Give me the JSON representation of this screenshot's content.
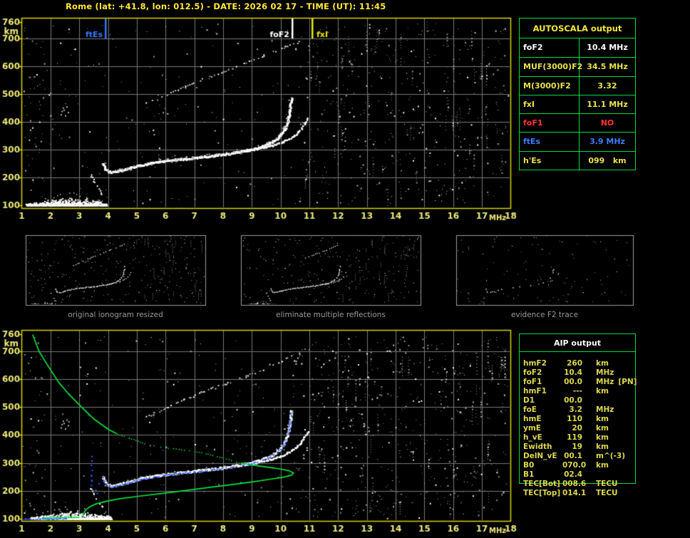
{
  "header": {
    "title": "Rome (lat: +41.8, lon: 012.5) - DATE: 2026 02 17 - TIME (UT): 11:45"
  },
  "colors": {
    "background": "#000000",
    "title_text": "#ffe93a",
    "plot_border": "#d8d400",
    "grid_line": "#7a7a7a",
    "axis_text": "#ece97a",
    "table_border": "#00d944",
    "table_yellow": "#e8e24e",
    "table_white": "#ffffff",
    "table_red": "#ff3232",
    "table_blue": "#3f7cff",
    "echo_white": "#ffffff",
    "noise_gray": "#9a9a9a",
    "profile_green": "#00e23c",
    "restored_blue": "#2b5cff",
    "caption_gray": "#9a9a9a",
    "thumb_border": "#9e9e9e"
  },
  "autoscala_table": {
    "title": "AUTOSCALA output",
    "rows": [
      {
        "label": "foF2",
        "value": "10.4 MHz",
        "color": "#ffffff"
      },
      {
        "label": "MUF(3000)F2",
        "value": "34.5 MHz",
        "color": "#e8e24e"
      },
      {
        "label": "M(3000)F2",
        "value": "3.32",
        "color": "#e8e24e"
      },
      {
        "label": "fxI",
        "value": "11.1 MHz",
        "color": "#e8e24e"
      },
      {
        "label": "foF1",
        "value": "NO",
        "color": "#ff3232"
      },
      {
        "label": "ftEs",
        "value": "3.9 MHz",
        "color": "#3f7cff"
      },
      {
        "label": "h'Es",
        "value": "099   km",
        "color": "#e8e24e"
      }
    ]
  },
  "aip_table": {
    "title": "AIP output",
    "rows": [
      {
        "label": "hmF2",
        "value": "260",
        "unit": "km",
        "note": ""
      },
      {
        "label": "foF2",
        "value": "10.4",
        "unit": "MHz",
        "note": ""
      },
      {
        "label": "foF1",
        "value": "00.0",
        "unit": "MHz",
        "note": "[PN]"
      },
      {
        "label": "hmF1",
        "value": "---",
        "unit": "km",
        "note": ""
      },
      {
        "label": "D1",
        "value": "00.0",
        "unit": "",
        "note": ""
      },
      {
        "label": "foE",
        "value": "3.2",
        "unit": "MHz",
        "note": ""
      },
      {
        "label": "hmE",
        "value": "110",
        "unit": "km",
        "note": ""
      },
      {
        "label": "ymE",
        "value": "20",
        "unit": "km",
        "note": ""
      },
      {
        "label": "h_vE",
        "value": "119",
        "unit": "km",
        "note": ""
      },
      {
        "label": "Ewidth",
        "value": "19",
        "unit": "km",
        "note": ""
      },
      {
        "label": "DelN_vE",
        "value": "00.1",
        "unit": "m^(-3)",
        "note": ""
      },
      {
        "label": "B0",
        "value": "070.0",
        "unit": "km",
        "note": ""
      },
      {
        "label": "B1",
        "value": "02.4",
        "unit": "",
        "note": ""
      },
      {
        "label": "TEC[Bot]",
        "value": "008.6",
        "unit": "TECU",
        "note": ""
      },
      {
        "label": "TEC[Top]",
        "value": "014.1",
        "unit": "TECU",
        "note": ""
      }
    ]
  },
  "thumbnails": [
    {
      "caption": "original ionogram resized"
    },
    {
      "caption": "eliminate multiple reflections"
    },
    {
      "caption": "evidence F2 trace"
    }
  ],
  "chart_data": {
    "type": "scatter",
    "x_axis": {
      "unit": "MHz",
      "range": [
        1,
        18
      ],
      "ticks": [
        1,
        2,
        3,
        4,
        5,
        6,
        7,
        8,
        9,
        10,
        11,
        12,
        13,
        14,
        15,
        16,
        17,
        18
      ]
    },
    "y_axis": {
      "unit": "km",
      "range": [
        100,
        760
      ],
      "ticks": [
        760,
        700,
        600,
        500,
        400,
        300,
        200,
        100
      ]
    },
    "top_plot_markers": [
      {
        "label": "ftEs",
        "freq": 3.9,
        "color": "#3a78ff",
        "label_side": "left"
      },
      {
        "label": "foF2",
        "freq": 10.4,
        "color": "#ffffff",
        "label_side": "left"
      },
      {
        "label": "fxI",
        "freq": 11.1,
        "color": "#e8e800",
        "label_side": "right"
      }
    ],
    "echo_traces": {
      "es_layer": {
        "f_range": [
          1.15,
          3.95
        ],
        "h_range": [
          100,
          132
        ],
        "peak_f": 2.7
      },
      "ef_streak": [
        [
          3.38,
          212
        ],
        [
          3.5,
          190
        ],
        [
          3.62,
          168
        ],
        [
          3.74,
          148
        ],
        [
          3.82,
          136
        ]
      ],
      "f2_ordinary": [
        [
          3.8,
          254
        ],
        [
          3.86,
          238
        ],
        [
          3.95,
          226
        ],
        [
          4.1,
          221
        ],
        [
          4.3,
          224
        ],
        [
          4.6,
          232
        ],
        [
          5.0,
          244
        ],
        [
          5.5,
          254
        ],
        [
          6.0,
          262
        ],
        [
          6.6,
          269
        ],
        [
          7.2,
          276
        ],
        [
          7.8,
          283
        ],
        [
          8.4,
          292
        ],
        [
          8.9,
          302
        ],
        [
          9.3,
          313
        ],
        [
          9.6,
          326
        ],
        [
          9.85,
          342
        ],
        [
          10.02,
          360
        ],
        [
          10.15,
          382
        ],
        [
          10.24,
          410
        ],
        [
          10.3,
          442
        ],
        [
          10.33,
          468
        ],
        [
          10.35,
          492
        ]
      ],
      "f2_extraordinary": [
        [
          8.7,
          296
        ],
        [
          9.1,
          303
        ],
        [
          9.5,
          312
        ],
        [
          9.9,
          323
        ],
        [
          10.2,
          336
        ],
        [
          10.45,
          352
        ],
        [
          10.65,
          372
        ],
        [
          10.8,
          392
        ],
        [
          10.9,
          408
        ],
        [
          10.95,
          418
        ]
      ],
      "second_hop": [
        [
          5.25,
          465
        ],
        [
          5.7,
          484
        ],
        [
          6.2,
          508
        ],
        [
          6.7,
          531
        ],
        [
          7.2,
          553
        ],
        [
          7.7,
          572
        ],
        [
          8.2,
          590
        ],
        [
          8.7,
          610
        ],
        [
          9.2,
          630
        ],
        [
          9.7,
          652
        ],
        [
          10.1,
          668
        ],
        [
          10.45,
          688
        ]
      ],
      "second_hop_tip": [
        [
          10.5,
          660
        ],
        [
          10.55,
          676
        ],
        [
          10.62,
          692
        ],
        [
          10.68,
          702
        ]
      ],
      "mid_cluster": [
        [
          2.35,
          428
        ],
        [
          2.45,
          444
        ],
        [
          2.55,
          456
        ],
        [
          2.42,
          452
        ],
        [
          2.6,
          436
        ],
        [
          2.5,
          424
        ],
        [
          2.38,
          440
        ],
        [
          2.62,
          450
        ]
      ]
    },
    "bottom_overlays": {
      "green_profile": {
        "topside_solid": [
          [
            1.38,
            760
          ],
          [
            1.6,
            700
          ],
          [
            1.9,
            650
          ],
          [
            2.29,
            588
          ],
          [
            2.65,
            545
          ],
          [
            3.05,
            503
          ],
          [
            3.5,
            458
          ],
          [
            4.03,
            419
          ],
          [
            4.3,
            405
          ]
        ],
        "topside_dotted": [
          [
            4.3,
            405
          ],
          [
            4.8,
            388
          ],
          [
            5.34,
            368
          ],
          [
            5.9,
            357
          ],
          [
            6.45,
            350
          ],
          [
            7.0,
            343
          ],
          [
            7.55,
            331
          ],
          [
            8.1,
            316
          ],
          [
            8.62,
            299
          ]
        ],
        "nose_solid": [
          [
            8.62,
            299
          ],
          [
            9.1,
            291
          ],
          [
            9.6,
            284
          ],
          [
            10.0,
            278
          ],
          [
            10.3,
            272
          ],
          [
            10.45,
            264
          ],
          [
            10.38,
            256
          ],
          [
            10.1,
            249
          ],
          [
            9.6,
            241
          ],
          [
            9.0,
            232
          ],
          [
            8.3,
            222
          ],
          [
            7.5,
            212
          ],
          [
            6.7,
            201
          ],
          [
            5.9,
            191
          ],
          [
            5.1,
            181
          ],
          [
            4.4,
            172
          ],
          [
            3.95,
            163
          ],
          [
            3.6,
            154
          ],
          [
            3.38,
            144
          ],
          [
            3.24,
            133
          ],
          [
            3.16,
            121
          ],
          [
            3.12,
            110
          ],
          [
            3.08,
            106
          ]
        ],
        "tail": [
          [
            3.0,
            105
          ],
          [
            2.7,
            104
          ],
          [
            2.35,
            104
          ],
          [
            2.0,
            103
          ],
          [
            1.7,
            103
          ]
        ]
      },
      "blue_restored": {
        "es": [
          [
            1.02,
            100
          ],
          [
            1.35,
            100
          ],
          [
            1.7,
            101
          ],
          [
            2.05,
            101
          ],
          [
            2.4,
            102
          ],
          [
            2.6,
            102
          ]
        ],
        "vertical": [
          [
            3.4,
            222
          ],
          [
            3.42,
            240
          ],
          [
            3.39,
            258
          ],
          [
            3.43,
            276
          ],
          [
            3.4,
            294
          ],
          [
            3.42,
            310
          ]
        ],
        "hook_extra": [
          [
            3.55,
            205
          ],
          [
            3.6,
            193
          ],
          [
            3.67,
            228
          ]
        ]
      }
    }
  }
}
